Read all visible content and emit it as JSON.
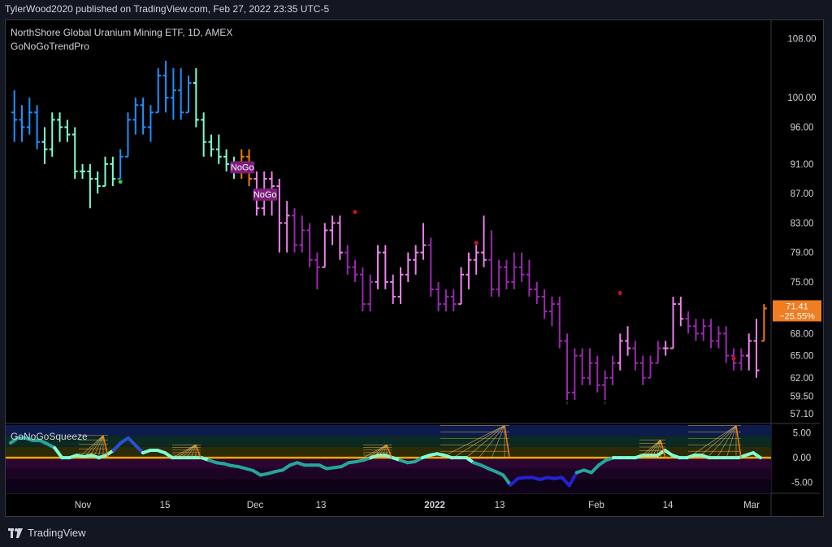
{
  "header": {
    "published": "TylerWood2020 published on TradingView.com, Feb 27, 2022 23:35 UTC-5"
  },
  "legend": {
    "symbol": "NorthShore Global Uranium Mining ETF, 1D, AMEX",
    "indicator": "GoNoGoTrendPro",
    "osc_label": "GoNoGoSqueeze"
  },
  "colors": {
    "bg": "#000000",
    "frame": "#131722",
    "text": "#d1d4dc",
    "go_strong": "#1e90ff",
    "go_weak": "#7fffd4",
    "nogo_strong": "#9c27b0",
    "nogo_weak": "#ee82ee",
    "amber": "#f57c00",
    "last_badge": "#ef7d21",
    "zero_line": "#ffa500"
  },
  "chart_data": {
    "type": "ohlc",
    "title": "NorthShore Global Uranium Mining ETF, 1D, AMEX",
    "ylim": [
      55.8,
      110.5
    ],
    "y_ticks": [
      "108.00",
      "100.00",
      "96.00",
      "91.00",
      "87.00",
      "83.00",
      "79.00",
      "75.00",
      "71.41",
      "68.00",
      "65.00",
      "62.00",
      "59.50",
      "57.10"
    ],
    "x_ticks": [
      "Nov",
      "15",
      "Dec",
      "13",
      "2022",
      "13",
      "Feb",
      "14",
      "Mar"
    ],
    "last": {
      "price": "71.41",
      "change": "−25.55%"
    },
    "labels": [
      "NoGo",
      "NoGo"
    ],
    "bars": [
      [
        98,
        101,
        94,
        97,
        "go_strong"
      ],
      [
        97,
        99,
        94,
        96,
        "go_strong"
      ],
      [
        96,
        100,
        95,
        98,
        "go_strong"
      ],
      [
        98,
        99,
        93,
        94,
        "go_strong"
      ],
      [
        94,
        96,
        91,
        93,
        "go_weak"
      ],
      [
        93,
        98,
        92,
        97,
        "go_weak"
      ],
      [
        97,
        98,
        94,
        96,
        "go_weak"
      ],
      [
        96,
        97,
        94,
        95,
        "go_weak"
      ],
      [
        95,
        96,
        89,
        90,
        "go_weak"
      ],
      [
        90,
        91,
        89,
        90,
        "go_weak"
      ],
      [
        90,
        91,
        85,
        89,
        "go_weak"
      ],
      [
        89,
        90,
        87,
        88,
        "go_weak"
      ],
      [
        88,
        92,
        88,
        91,
        "go_weak"
      ],
      [
        91,
        92,
        88,
        89,
        "go_weak"
      ],
      [
        89,
        93,
        89,
        92,
        "go_strong"
      ],
      [
        92,
        98,
        92,
        97,
        "go_strong"
      ],
      [
        97,
        100,
        95,
        99,
        "go_strong"
      ],
      [
        99,
        100,
        95,
        96,
        "go_strong"
      ],
      [
        96,
        99,
        94,
        98,
        "go_strong"
      ],
      [
        98,
        104,
        98,
        103,
        "go_strong"
      ],
      [
        103,
        105,
        98,
        100,
        "go_strong"
      ],
      [
        100,
        104,
        97,
        101,
        "go_strong"
      ],
      [
        101,
        104,
        97,
        98,
        "go_strong"
      ],
      [
        98,
        103,
        98,
        102,
        "go_strong"
      ],
      [
        102,
        104,
        96,
        97,
        "go_weak"
      ],
      [
        97,
        98,
        92,
        94,
        "go_weak"
      ],
      [
        94,
        95,
        92,
        93,
        "go_weak"
      ],
      [
        93,
        95,
        91,
        92,
        "go_weak"
      ],
      [
        92,
        93,
        90,
        91,
        "go_weak"
      ],
      [
        91,
        92,
        89,
        90,
        "go_weak"
      ],
      [
        90,
        93,
        89,
        92,
        "amber"
      ],
      [
        92,
        93,
        88,
        89,
        "amber"
      ],
      [
        89,
        90,
        84,
        85,
        "nogo_weak"
      ],
      [
        85,
        90,
        84,
        89,
        "nogo_weak"
      ],
      [
        89,
        90,
        84,
        88,
        "nogo_weak"
      ],
      [
        88,
        89,
        79,
        83,
        "nogo_weak"
      ],
      [
        83,
        86,
        79,
        84,
        "nogo_weak"
      ],
      [
        84,
        85,
        79,
        80,
        "nogo_strong"
      ],
      [
        80,
        84,
        79,
        82,
        "nogo_strong"
      ],
      [
        82,
        83,
        77,
        78,
        "nogo_strong"
      ],
      [
        78,
        79,
        74,
        77,
        "nogo_strong"
      ],
      [
        77,
        83,
        77,
        82,
        "nogo_weak"
      ],
      [
        82,
        84,
        80,
        83,
        "nogo_weak"
      ],
      [
        83,
        84,
        78,
        79,
        "nogo_weak"
      ],
      [
        79,
        80,
        76,
        77,
        "nogo_strong"
      ],
      [
        77,
        78,
        75,
        76,
        "nogo_strong"
      ],
      [
        76,
        77,
        71,
        72,
        "nogo_strong"
      ],
      [
        72,
        76,
        71,
        75,
        "nogo_strong"
      ],
      [
        75,
        80,
        74,
        79,
        "nogo_weak"
      ],
      [
        79,
        80,
        74,
        75,
        "nogo_weak"
      ],
      [
        75,
        76,
        72,
        73,
        "nogo_weak"
      ],
      [
        73,
        77,
        72,
        76,
        "nogo_weak"
      ],
      [
        76,
        79,
        75,
        78,
        "nogo_weak"
      ],
      [
        78,
        80,
        76,
        79,
        "nogo_weak"
      ],
      [
        79,
        83,
        78,
        80,
        "nogo_weak"
      ],
      [
        80,
        81,
        73,
        74,
        "nogo_strong"
      ],
      [
        74,
        75,
        71,
        72,
        "nogo_strong"
      ],
      [
        72,
        74,
        71,
        73,
        "nogo_strong"
      ],
      [
        73,
        74,
        71,
        72,
        "nogo_strong"
      ],
      [
        72,
        77,
        72,
        76,
        "nogo_weak"
      ],
      [
        76,
        79,
        74,
        78,
        "nogo_weak"
      ],
      [
        78,
        80,
        76,
        79,
        "nogo_weak"
      ],
      [
        79,
        84,
        77,
        78,
        "nogo_weak"
      ],
      [
        78,
        82,
        73,
        74,
        "nogo_strong"
      ],
      [
        74,
        78,
        73,
        77,
        "nogo_strong"
      ],
      [
        77,
        78,
        74,
        75,
        "nogo_strong"
      ],
      [
        75,
        79,
        74,
        77,
        "nogo_strong"
      ],
      [
        77,
        79,
        75,
        76,
        "nogo_strong"
      ],
      [
        76,
        78,
        73,
        74,
        "nogo_strong"
      ],
      [
        74,
        75,
        72,
        73,
        "nogo_strong"
      ],
      [
        73,
        74,
        70,
        71,
        "nogo_strong"
      ],
      [
        71,
        73,
        69,
        72,
        "nogo_strong"
      ],
      [
        72,
        73,
        66,
        67,
        "nogo_strong"
      ],
      [
        67,
        68,
        59,
        60,
        "nogo_strong"
      ],
      [
        60,
        66,
        59,
        65,
        "nogo_strong"
      ],
      [
        65,
        66,
        61,
        62,
        "nogo_strong"
      ],
      [
        62,
        66,
        61,
        64,
        "nogo_strong"
      ],
      [
        64,
        65,
        60,
        61,
        "nogo_strong"
      ],
      [
        61,
        63,
        59,
        62,
        "nogo_strong"
      ],
      [
        62,
        65,
        61,
        64,
        "nogo_strong"
      ],
      [
        64,
        68,
        63,
        67,
        "nogo_weak"
      ],
      [
        67,
        69,
        65,
        66,
        "nogo_weak"
      ],
      [
        66,
        67,
        63,
        64,
        "nogo_strong"
      ],
      [
        64,
        65,
        61,
        62,
        "nogo_strong"
      ],
      [
        62,
        65,
        62,
        64,
        "nogo_strong"
      ],
      [
        64,
        67,
        64,
        66,
        "nogo_strong"
      ],
      [
        66,
        67,
        65,
        66,
        "nogo_weak"
      ],
      [
        66,
        73,
        66,
        72,
        "nogo_weak"
      ],
      [
        72,
        73,
        69,
        70,
        "nogo_weak"
      ],
      [
        70,
        71,
        68,
        69,
        "nogo_strong"
      ],
      [
        69,
        70,
        67,
        68,
        "nogo_strong"
      ],
      [
        68,
        70,
        67,
        69,
        "nogo_strong"
      ],
      [
        69,
        70,
        66,
        67,
        "nogo_strong"
      ],
      [
        67,
        69,
        66,
        68,
        "nogo_strong"
      ],
      [
        68,
        69,
        64,
        65,
        "nogo_strong"
      ],
      [
        65,
        66,
        63,
        64,
        "nogo_strong"
      ],
      [
        64,
        66,
        63,
        65,
        "nogo_strong"
      ],
      [
        65,
        68,
        63,
        67,
        "nogo_weak"
      ],
      [
        67,
        70,
        62,
        63,
        "nogo_weak"
      ],
      [
        67,
        72,
        67,
        71.41,
        "amber"
      ]
    ],
    "squeeze": {
      "ylim": [
        -7.2,
        6.6
      ],
      "y_ticks": [
        "5.00",
        "0.00",
        "-5.00"
      ],
      "values": [
        3,
        4,
        4,
        3.5,
        3.5,
        2.8,
        2,
        0,
        0,
        0.5,
        0.2,
        0.5,
        0,
        0.5,
        1.5,
        3,
        4,
        2.5,
        1,
        1.5,
        1.5,
        1,
        0,
        0,
        0,
        0,
        0,
        -0.5,
        -1,
        -1.2,
        -1.6,
        -1.8,
        -2.2,
        -2.6,
        -3.5,
        -3.2,
        -2.8,
        -2.5,
        -1.5,
        -1,
        -1.5,
        -1.5,
        -1.5,
        -2.2,
        -2,
        -1.8,
        -1,
        -0.8,
        -0.5,
        0,
        0.5,
        0.5,
        0,
        -0.5,
        -1,
        -0.8,
        0,
        0.5,
        0.8,
        0.5,
        0,
        0,
        0,
        -1,
        -1.5,
        -2.2,
        -2.8,
        -3.5,
        -5.5,
        -4.2,
        -4,
        -4,
        -4.4,
        -4,
        -4.2,
        -4,
        -5.6,
        -3,
        -2.5,
        -3,
        -1.5,
        -0.5,
        0,
        0,
        0,
        0,
        0.5,
        0.5,
        0.5,
        1.5,
        0.5,
        0,
        0,
        0.5,
        0.5,
        0,
        0,
        0,
        0,
        0,
        0.5,
        1,
        0
      ]
    }
  }
}
